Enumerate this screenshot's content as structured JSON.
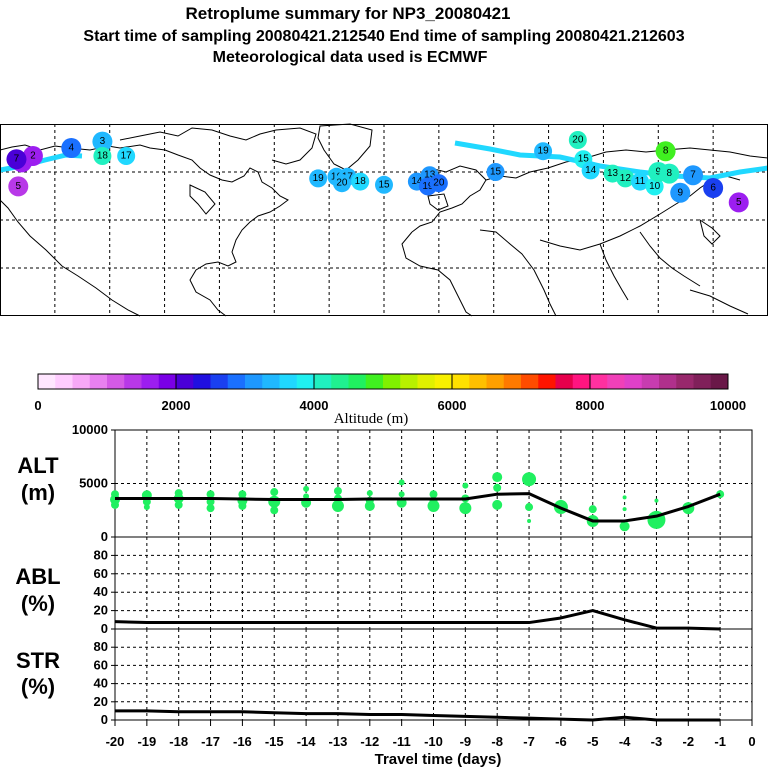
{
  "title": {
    "line1": "Retroplume summary for NP3_20080421",
    "line2": "Start time of sampling 20080421.212540     End time of sampling 20080421.212603",
    "line3": "Meteorological data used is ECMWF"
  },
  "colorbar": {
    "label": "Altitude (m)",
    "min": 0,
    "max": 10000,
    "tick_labels": [
      "0",
      "2000",
      "4000",
      "6000",
      "8000",
      "10000"
    ],
    "colors": [
      "#ffe6ff",
      "#ffccff",
      "#f7a8f7",
      "#e880f0",
      "#d45ae6",
      "#b838e8",
      "#9c1ef0",
      "#7a00e6",
      "#4a00d8",
      "#2010e0",
      "#1a40f0",
      "#1a70ff",
      "#1e98ff",
      "#20b8ff",
      "#20d8ff",
      "#20f0f0",
      "#20f0c0",
      "#20f090",
      "#20f060",
      "#40f020",
      "#80f000",
      "#b8f000",
      "#e0f000",
      "#f8f000",
      "#ffe000",
      "#ffc000",
      "#ffa000",
      "#ff7a00",
      "#ff4c00",
      "#ff1400",
      "#e6004c",
      "#ff1480",
      "#ff30a0",
      "#f040b8",
      "#e040c8",
      "#c83cb0",
      "#b0308c",
      "#98286c",
      "#80205a",
      "#6a1848"
    ]
  },
  "map_labels": [
    {
      "text": "2",
      "lon": -162,
      "lat": 70,
      "color": "#9c1ef0"
    },
    {
      "text": "6",
      "lon": -168,
      "lat": 66,
      "color": "#9c1ef0"
    },
    {
      "text": "5",
      "lon": -170,
      "lat": 51,
      "color": "#b838e8"
    },
    {
      "text": "7",
      "lon": -171,
      "lat": 68,
      "color": "#4a00d8"
    },
    {
      "text": "4",
      "lon": -141,
      "lat": 75,
      "color": "#1a70ff"
    },
    {
      "text": "3",
      "lon": -124,
      "lat": 79,
      "color": "#20b8ff"
    },
    {
      "text": "18",
      "lon": -124,
      "lat": 70,
      "color": "#20f0c0"
    },
    {
      "text": "17",
      "lon": -111,
      "lat": 70,
      "color": "#20d8ff"
    },
    {
      "text": "19",
      "lon": -6,
      "lat": 56,
      "color": "#20b8ff"
    },
    {
      "text": "16",
      "lon": 4,
      "lat": 57,
      "color": "#20b8ff"
    },
    {
      "text": "17",
      "lon": 10,
      "lat": 57,
      "color": "#20b8ff"
    },
    {
      "text": "20",
      "lon": 7,
      "lat": 53,
      "color": "#20b8ff"
    },
    {
      "text": "18",
      "lon": 17,
      "lat": 54,
      "color": "#20d8ff"
    },
    {
      "text": "15",
      "lon": 30,
      "lat": 52,
      "color": "#20b8ff"
    },
    {
      "text": "14",
      "lon": 48,
      "lat": 54,
      "color": "#1e98ff"
    },
    {
      "text": "13",
      "lon": 55,
      "lat": 58,
      "color": "#1e98ff"
    },
    {
      "text": "19",
      "lon": 54,
      "lat": 51,
      "color": "#1a70ff"
    },
    {
      "text": "20",
      "lon": 60,
      "lat": 53,
      "color": "#1a70ff"
    },
    {
      "text": "15",
      "lon": 91,
      "lat": 60,
      "color": "#1e98ff"
    },
    {
      "text": "19",
      "lon": 117,
      "lat": 73,
      "color": "#20b8ff"
    },
    {
      "text": "20",
      "lon": 136,
      "lat": 80,
      "color": "#20f0c0"
    },
    {
      "text": "15",
      "lon": 139,
      "lat": 68,
      "color": "#20f0f0"
    },
    {
      "text": "14",
      "lon": 143,
      "lat": 61,
      "color": "#20d8ff"
    },
    {
      "text": "13",
      "lon": 155,
      "lat": 59,
      "color": "#20f0c0"
    },
    {
      "text": "12",
      "lon": 162,
      "lat": 56,
      "color": "#20f0c0"
    },
    {
      "text": "11",
      "lon": 170,
      "lat": 54,
      "color": "#20d8ff"
    },
    {
      "text": "10",
      "lon": 178,
      "lat": 51,
      "color": "#20f0f0"
    },
    {
      "text": "9",
      "lon": 180,
      "lat": 60,
      "color": "#20f0c0"
    },
    {
      "text": "8",
      "lon": 186,
      "lat": 59,
      "color": "#20f0c0"
    },
    {
      "text": "9",
      "lon": 192,
      "lat": 47,
      "color": "#1e98ff"
    },
    {
      "text": "8",
      "lon": 184,
      "lat": 73,
      "color": "#40f020"
    },
    {
      "text": "7",
      "lon": 199,
      "lat": 58,
      "color": "#1e98ff"
    },
    {
      "text": "6",
      "lon": 210,
      "lat": 50,
      "color": "#1a40f0"
    },
    {
      "text": "5",
      "lon": 224,
      "lat": 41,
      "color": "#9c1ef0"
    }
  ],
  "chart_data": [
    {
      "type": "scatter",
      "panel": "ALT",
      "ylabel": "ALT\n(m)",
      "ylim": [
        0,
        10000
      ],
      "y_tick_labels": [
        "0",
        "5000",
        "10000"
      ],
      "x": [
        -20,
        -19,
        -18,
        -17,
        -16,
        -15,
        -14,
        -13,
        -12,
        -11,
        -10,
        -9,
        -8,
        -7,
        -6,
        -5,
        -4,
        -3,
        -2,
        -1
      ],
      "line_values": [
        3600,
        3600,
        3600,
        3600,
        3550,
        3500,
        3500,
        3500,
        3550,
        3550,
        3550,
        3550,
        4000,
        4050,
        2700,
        1500,
        1500,
        1950,
        2850,
        4000
      ],
      "point_color": "#20f060",
      "points": [
        {
          "x": -20,
          "y": 4000,
          "s": 4
        },
        {
          "x": -20,
          "y": 3500,
          "s": 5
        },
        {
          "x": -20,
          "y": 3000,
          "s": 4
        },
        {
          "x": -19,
          "y": 3900,
          "s": 5
        },
        {
          "x": -19,
          "y": 3300,
          "s": 4
        },
        {
          "x": -19,
          "y": 2800,
          "s": 3
        },
        {
          "x": -18,
          "y": 4100,
          "s": 4
        },
        {
          "x": -18,
          "y": 3600,
          "s": 5
        },
        {
          "x": -18,
          "y": 3000,
          "s": 4
        },
        {
          "x": -17,
          "y": 4000,
          "s": 4
        },
        {
          "x": -17,
          "y": 3300,
          "s": 4
        },
        {
          "x": -17,
          "y": 2700,
          "s": 4
        },
        {
          "x": -16,
          "y": 4000,
          "s": 4
        },
        {
          "x": -16,
          "y": 3400,
          "s": 5
        },
        {
          "x": -16,
          "y": 2900,
          "s": 4
        },
        {
          "x": -15,
          "y": 4200,
          "s": 4
        },
        {
          "x": -15,
          "y": 3300,
          "s": 6
        },
        {
          "x": -15,
          "y": 2500,
          "s": 4
        },
        {
          "x": -14,
          "y": 4500,
          "s": 3
        },
        {
          "x": -14,
          "y": 3800,
          "s": 3
        },
        {
          "x": -14,
          "y": 3200,
          "s": 5
        },
        {
          "x": -13,
          "y": 4300,
          "s": 4
        },
        {
          "x": -13,
          "y": 3600,
          "s": 4
        },
        {
          "x": -13,
          "y": 2900,
          "s": 6
        },
        {
          "x": -12,
          "y": 4100,
          "s": 3
        },
        {
          "x": -12,
          "y": 3400,
          "s": 4
        },
        {
          "x": -12,
          "y": 2900,
          "s": 5
        },
        {
          "x": -11,
          "y": 5100,
          "s": 3
        },
        {
          "x": -11,
          "y": 4000,
          "s": 3
        },
        {
          "x": -11,
          "y": 3200,
          "s": 5
        },
        {
          "x": -10,
          "y": 4000,
          "s": 4
        },
        {
          "x": -10,
          "y": 3400,
          "s": 4
        },
        {
          "x": -10,
          "y": 2900,
          "s": 6
        },
        {
          "x": -9,
          "y": 4800,
          "s": 3
        },
        {
          "x": -9,
          "y": 3600,
          "s": 4
        },
        {
          "x": -9,
          "y": 2700,
          "s": 6
        },
        {
          "x": -8,
          "y": 5600,
          "s": 5
        },
        {
          "x": -8,
          "y": 4600,
          "s": 4
        },
        {
          "x": -8,
          "y": 3000,
          "s": 5
        },
        {
          "x": -7,
          "y": 5400,
          "s": 7
        },
        {
          "x": -7,
          "y": 2800,
          "s": 4
        },
        {
          "x": -7,
          "y": 1500,
          "s": 2
        },
        {
          "x": -6,
          "y": 3300,
          "s": 2
        },
        {
          "x": -6,
          "y": 2800,
          "s": 7
        },
        {
          "x": -5,
          "y": 2600,
          "s": 4
        },
        {
          "x": -5,
          "y": 1500,
          "s": 6
        },
        {
          "x": -4,
          "y": 3700,
          "s": 2
        },
        {
          "x": -4,
          "y": 2600,
          "s": 2
        },
        {
          "x": -4,
          "y": 1000,
          "s": 5
        },
        {
          "x": -3,
          "y": 3400,
          "s": 2
        },
        {
          "x": -3,
          "y": 1600,
          "s": 9
        },
        {
          "x": -2,
          "y": 2700,
          "s": 6
        },
        {
          "x": -1,
          "y": 4000,
          "s": 4
        }
      ]
    },
    {
      "type": "line",
      "panel": "ABL",
      "ylabel": "ABL\n(%)",
      "ylim": [
        0,
        100
      ],
      "y_tick_labels": [
        "0",
        "20",
        "40",
        "60",
        "80"
      ],
      "x": [
        -20,
        -19,
        -18,
        -17,
        -16,
        -15,
        -14,
        -13,
        -12,
        -11,
        -10,
        -9,
        -8,
        -7,
        -6,
        -5,
        -4,
        -3,
        -2,
        -1
      ],
      "values": [
        8,
        7,
        7,
        7,
        7,
        7,
        7,
        7,
        7,
        7,
        7,
        7,
        7,
        7,
        12,
        20,
        10,
        1,
        1,
        0
      ]
    },
    {
      "type": "line",
      "panel": "STR",
      "ylabel": "STR\n(%)",
      "ylim": [
        0,
        100
      ],
      "y_tick_labels": [
        "0",
        "20",
        "40",
        "60",
        "80"
      ],
      "x": [
        -20,
        -19,
        -18,
        -17,
        -16,
        -15,
        -14,
        -13,
        -12,
        -11,
        -10,
        -9,
        -8,
        -7,
        -6,
        -5,
        -4,
        -3,
        -2,
        -1
      ],
      "values": [
        10,
        10,
        9,
        9,
        9,
        8,
        7,
        7,
        6,
        6,
        5,
        4,
        3,
        2,
        1,
        0,
        3,
        0,
        0,
        0
      ]
    }
  ],
  "x_axis": {
    "label": "Travel time (days)",
    "tick_labels": [
      "-20",
      "-19",
      "-18",
      "-17",
      "-16",
      "-15",
      "-14",
      "-13",
      "-12",
      "-11",
      "-10",
      "-9",
      "-8",
      "-7",
      "-6",
      "-5",
      "-4",
      "-3",
      "-2",
      "-1",
      "0"
    ]
  }
}
